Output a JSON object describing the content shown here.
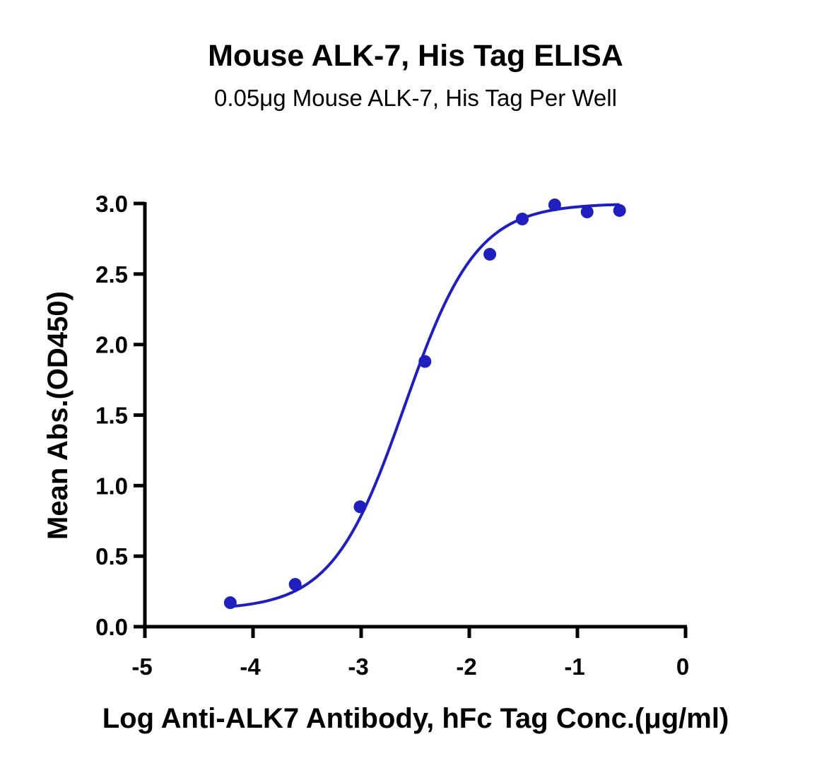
{
  "chart_data": {
    "type": "scatter",
    "title": "Mouse ALK-7, His Tag ELISA",
    "subtitle": "0.05μg Mouse ALK-7, His Tag Per Well",
    "xlabel": "Log Anti-ALK7 Antibody, hFc Tag Conc.(μg/ml)",
    "ylabel": "Mean Abs.(OD450)",
    "xlim": [
      -5,
      0
    ],
    "ylim": [
      0,
      3.0
    ],
    "x_ticks": [
      -5,
      -4,
      -3,
      -2,
      -1,
      0
    ],
    "x_tick_labels": [
      "-5",
      "-4",
      "-3",
      "-2",
      "-1",
      "0"
    ],
    "y_ticks": [
      0,
      0.5,
      1.0,
      1.5,
      2.0,
      2.5,
      3.0
    ],
    "y_tick_labels": [
      "0.0",
      "0.5",
      "1.0",
      "1.5",
      "2.0",
      "2.5",
      "3.0"
    ],
    "grid": false,
    "legend": "none",
    "color": "#1f1fbf",
    "series": [
      {
        "x": [
          -4.21,
          -3.61,
          -3.01,
          -2.41,
          -1.81,
          -1.51,
          -1.21,
          -0.91,
          -0.61
        ],
        "y": [
          0.17,
          0.3,
          0.85,
          1.88,
          2.64,
          2.89,
          2.99,
          2.94,
          2.95
        ]
      }
    ],
    "fit": {
      "type": "4PL",
      "bottom": 0.12,
      "top": 3.0,
      "logEC50": -2.6,
      "hill": 1.3,
      "x_range": [
        -4.21,
        -0.61
      ]
    }
  }
}
